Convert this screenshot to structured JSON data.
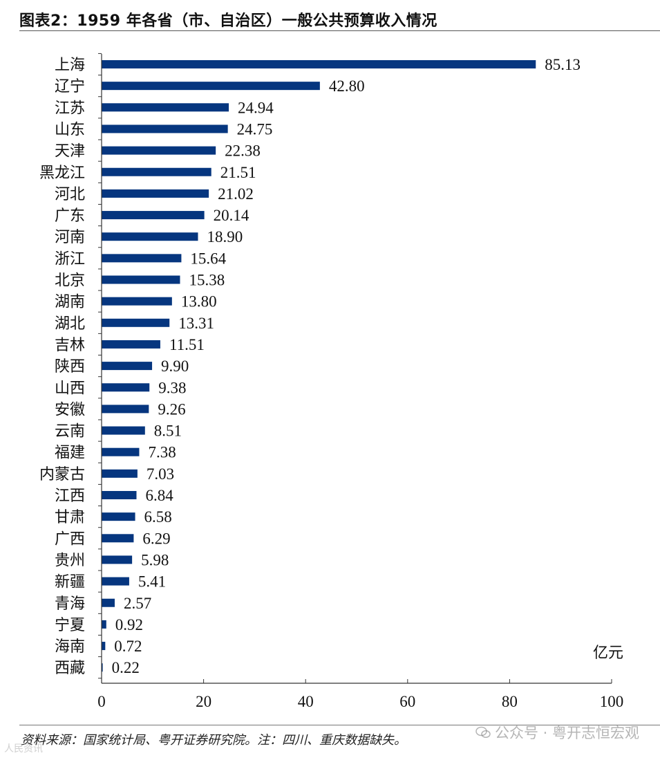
{
  "header": {
    "title": "图表2：1959 年各省（市、自治区）一般公共预算收入情况"
  },
  "chart_data": {
    "type": "bar",
    "orientation": "horizontal",
    "title": "图表2：1959 年各省（市、自治区）一般公共预算收入情况",
    "unit": "亿元",
    "xlabel": "",
    "ylabel": "",
    "xlim": [
      0,
      100
    ],
    "x_ticks": [
      0,
      20,
      40,
      60,
      80,
      100
    ],
    "grid": false,
    "bar_color": "#06367f",
    "categories": [
      "上海",
      "辽宁",
      "江苏",
      "山东",
      "天津",
      "黑龙江",
      "河北",
      "广东",
      "河南",
      "浙江",
      "北京",
      "湖南",
      "湖北",
      "吉林",
      "陕西",
      "山西",
      "安徽",
      "云南",
      "福建",
      "内蒙古",
      "江西",
      "甘肃",
      "广西",
      "贵州",
      "新疆",
      "青海",
      "宁夏",
      "海南",
      "西藏"
    ],
    "values": [
      85.13,
      42.8,
      24.94,
      24.75,
      22.38,
      21.51,
      21.02,
      20.14,
      18.9,
      15.64,
      15.38,
      13.8,
      13.31,
      11.51,
      9.9,
      9.38,
      9.26,
      8.51,
      7.38,
      7.03,
      6.84,
      6.58,
      6.29,
      5.98,
      5.41,
      2.57,
      0.92,
      0.72,
      0.22
    ],
    "value_labels": [
      "85.13",
      "42.80",
      "24.94",
      "24.75",
      "22.38",
      "21.51",
      "21.02",
      "20.14",
      "18.90",
      "15.64",
      "15.38",
      "13.80",
      "13.31",
      "11.51",
      "9.90",
      "9.38",
      "9.26",
      "8.51",
      "7.38",
      "7.03",
      "6.84",
      "6.58",
      "6.29",
      "5.98",
      "5.41",
      "2.57",
      "0.92",
      "0.72",
      "0.22"
    ]
  },
  "footer": {
    "source": "资料来源：国家统计局、粤开证券研究院。注：四川、重庆数据缺失。",
    "watermark": "公众号 · 粤开志恒宏观",
    "corner_mark": "人民资讯"
  }
}
